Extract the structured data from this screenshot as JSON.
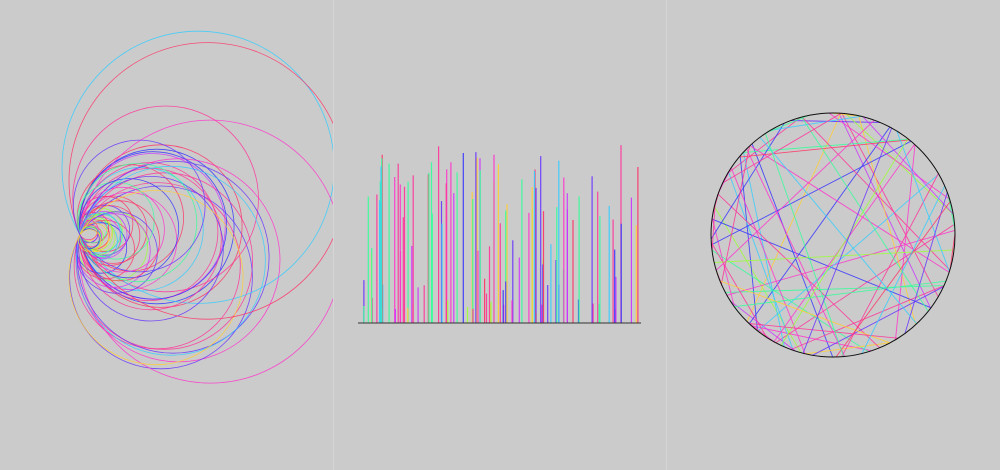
{
  "palette": [
    "#ff3399",
    "#3333ff",
    "#33ccff",
    "#99ff33",
    "#cc33ff",
    "#ff3366",
    "#33ff99",
    "#6633ff",
    "#ffcc33",
    "#ff33cc"
  ],
  "background": "#cbcbcb",
  "panels": [
    {
      "kind": "nested-circles",
      "seed": 11,
      "count": 60
    },
    {
      "kind": "vertical-lines",
      "seed": 23,
      "count": 110
    },
    {
      "kind": "circle-chords",
      "seed": 37,
      "count": 70
    }
  ]
}
